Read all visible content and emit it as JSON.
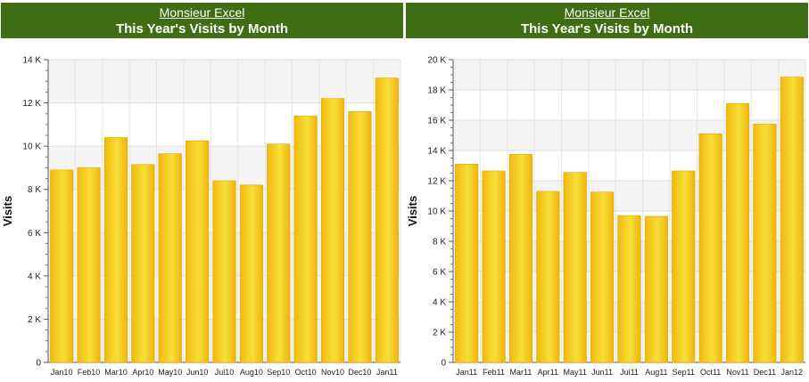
{
  "panels": [
    {
      "link": "Monsieur Excel",
      "title": "This Year's Visits by Month",
      "chart_data": {
        "type": "bar",
        "title": "This Year's Visits by Month",
        "ylabel": "Visits",
        "xlabel": "",
        "ylim": [
          0,
          14000
        ],
        "y_ticks": [
          0,
          2000,
          4000,
          6000,
          8000,
          10000,
          12000,
          14000
        ],
        "y_tick_labels": [
          "0",
          "2 K",
          "4 K",
          "6 K",
          "8 K",
          "10 K",
          "12 K",
          "14 K"
        ],
        "grid": true,
        "categories": [
          "Jan10",
          "Feb10",
          "Mar10",
          "Apr10",
          "May10",
          "Jun10",
          "Jul10",
          "Aug10",
          "Sep10",
          "Oct10",
          "Nov10",
          "Dec10",
          "Jan11"
        ],
        "values": [
          8900,
          9000,
          10400,
          9150,
          9650,
          10250,
          8400,
          8200,
          10100,
          11400,
          12200,
          11600,
          13150
        ]
      }
    },
    {
      "link": "Monsieur Excel",
      "title": "This Year's Visits by Month",
      "chart_data": {
        "type": "bar",
        "title": "This Year's Visits by Month",
        "ylabel": "Visits",
        "xlabel": "",
        "ylim": [
          0,
          20000
        ],
        "y_ticks": [
          0,
          2000,
          4000,
          6000,
          8000,
          10000,
          12000,
          14000,
          16000,
          18000,
          20000
        ],
        "y_tick_labels": [
          "0",
          "2 K",
          "4 K",
          "6 K",
          "8 K",
          "10 K",
          "12 K",
          "14 K",
          "16 K",
          "18 K",
          "20 K"
        ],
        "grid": true,
        "categories": [
          "Jan11",
          "Feb11",
          "Mar11",
          "Apr11",
          "May11",
          "Jun11",
          "Jul11",
          "Aug11",
          "Sep11",
          "Oct11",
          "Nov11",
          "Dec11",
          "Jan12"
        ],
        "values": [
          13100,
          12650,
          13750,
          11300,
          12550,
          11250,
          9700,
          9650,
          12650,
          15100,
          17100,
          15750,
          18850
        ]
      }
    }
  ]
}
